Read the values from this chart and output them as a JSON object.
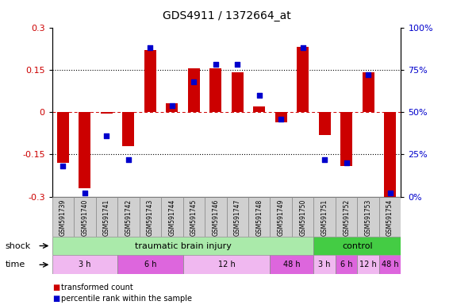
{
  "title": "GDS4911 / 1372664_at",
  "samples": [
    "GSM591739",
    "GSM591740",
    "GSM591741",
    "GSM591742",
    "GSM591743",
    "GSM591744",
    "GSM591745",
    "GSM591746",
    "GSM591747",
    "GSM591748",
    "GSM591749",
    "GSM591750",
    "GSM591751",
    "GSM591752",
    "GSM591753",
    "GSM591754"
  ],
  "bar_values": [
    -0.18,
    -0.27,
    -0.005,
    -0.12,
    0.22,
    0.03,
    0.155,
    0.155,
    0.14,
    0.02,
    -0.035,
    0.23,
    -0.08,
    -0.19,
    0.14,
    -0.3
  ],
  "dot_values": [
    18,
    2,
    36,
    22,
    88,
    54,
    68,
    78,
    78,
    60,
    46,
    88,
    22,
    20,
    72,
    2
  ],
  "bar_color": "#cc0000",
  "dot_color": "#0000cc",
  "ylim_left": [
    -0.3,
    0.3
  ],
  "ylim_right": [
    0,
    100
  ],
  "yticks_left": [
    -0.3,
    -0.15,
    0.0,
    0.15,
    0.3
  ],
  "ytick_labels_left": [
    "-0.3",
    "-0.15",
    "0",
    "0.15",
    "0.3"
  ],
  "yticks_right": [
    0,
    25,
    50,
    75,
    100
  ],
  "ytick_labels_right": [
    "0%",
    "25%",
    "50%",
    "75%",
    "100%"
  ],
  "hlines": [
    -0.15,
    0.0,
    0.15
  ],
  "shock_groups": [
    {
      "label": "traumatic brain injury",
      "start": 0,
      "end": 12,
      "color": "#aaeaaa"
    },
    {
      "label": "control",
      "start": 12,
      "end": 16,
      "color": "#44cc44"
    }
  ],
  "time_groups": [
    {
      "label": "3 h",
      "start": 0,
      "end": 3,
      "color": "#f0b8f0"
    },
    {
      "label": "6 h",
      "start": 3,
      "end": 6,
      "color": "#dd66dd"
    },
    {
      "label": "12 h",
      "start": 6,
      "end": 10,
      "color": "#f0b8f0"
    },
    {
      "label": "48 h",
      "start": 10,
      "end": 12,
      "color": "#dd66dd"
    },
    {
      "label": "3 h",
      "start": 12,
      "end": 13,
      "color": "#f0b8f0"
    },
    {
      "label": "6 h",
      "start": 13,
      "end": 14,
      "color": "#dd66dd"
    },
    {
      "label": "12 h",
      "start": 14,
      "end": 15,
      "color": "#f0b8f0"
    },
    {
      "label": "48 h",
      "start": 15,
      "end": 16,
      "color": "#dd66dd"
    }
  ],
  "legend_items": [
    {
      "label": "transformed count",
      "color": "#cc0000"
    },
    {
      "label": "percentile rank within the sample",
      "color": "#0000cc"
    }
  ],
  "shock_label": "shock",
  "time_label": "time",
  "bar_width": 0.55,
  "dot_size": 22
}
